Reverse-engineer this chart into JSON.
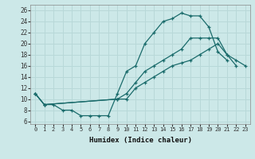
{
  "xlabel": "Humidex (Indice chaleur)",
  "background_color": "#cce8e8",
  "grid_color": "#b8d8d8",
  "line_color": "#1a6b6b",
  "xlim": [
    -0.5,
    23.5
  ],
  "ylim": [
    5.5,
    27
  ],
  "line1_x": [
    0,
    1,
    2,
    3,
    4,
    5,
    6,
    7,
    8,
    9,
    10,
    11,
    12,
    13,
    14,
    15,
    16,
    17,
    18,
    19,
    20,
    21
  ],
  "line1_y": [
    11,
    9,
    9,
    8,
    8,
    7,
    7,
    7,
    7,
    11,
    15,
    16,
    20,
    22,
    24,
    24.5,
    25.5,
    25,
    25,
    23,
    18.5,
    17
  ],
  "line2_x": [
    0,
    1,
    9,
    10,
    11,
    12,
    13,
    14,
    15,
    16,
    17,
    18,
    19,
    20,
    21,
    22
  ],
  "line2_y": [
    11,
    9,
    10,
    11,
    13,
    15,
    16,
    17,
    18,
    19,
    21,
    21,
    21,
    21,
    18,
    16
  ],
  "line3_x": [
    0,
    1,
    9,
    10,
    11,
    12,
    13,
    14,
    15,
    16,
    17,
    18,
    19,
    20,
    21,
    22,
    23
  ],
  "line3_y": [
    11,
    9,
    10,
    10,
    12,
    13,
    14,
    15,
    16,
    16.5,
    17,
    18,
    19,
    20,
    18,
    17,
    16
  ]
}
